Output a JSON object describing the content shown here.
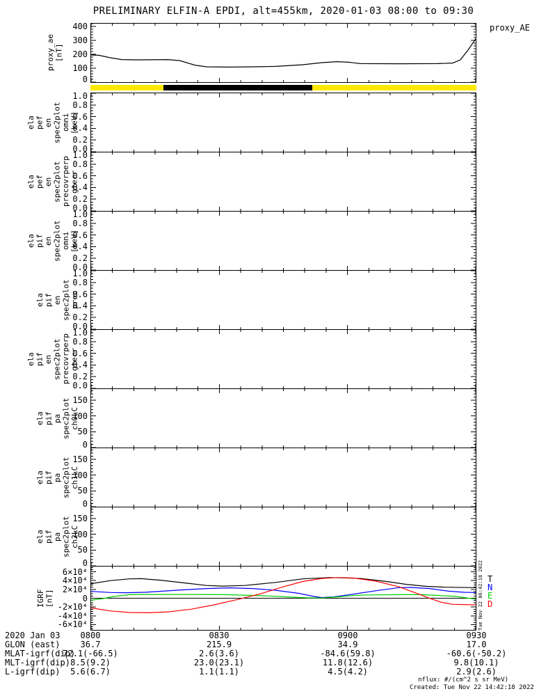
{
  "title": "PRELIMINARY ELFIN-A EPDI, alt=455km, 2020-01-03 08:00 to 09:30",
  "top_right_label": "proxy_AE",
  "side_timestamp": "Tue Nov 22 06:42:18 2022",
  "footer": {
    "nflux": "nflux: #/(cm^2 s sr MeV)",
    "created": "Created: Tue Nov 22 14:42:18 2022"
  },
  "colors": {
    "axis": "#000000",
    "bar_yellow": "#ffe800",
    "bar_black": "#000000",
    "trace_T": "#000000",
    "trace_N": "#0000ff",
    "trace_E": "#00cc00",
    "trace_D": "#ff0000"
  },
  "legend": {
    "entries": [
      {
        "label": "T",
        "color": "#000000"
      },
      {
        "label": "N",
        "color": "#0000ff"
      },
      {
        "label": "E",
        "color": "#00cc00"
      },
      {
        "label": "D",
        "color": "#ff0000"
      }
    ]
  },
  "x_axis": {
    "tick_labels": [
      "0800",
      "0830",
      "0900",
      "0930"
    ],
    "minor_per_major": 6
  },
  "status_bar": {
    "segments": [
      {
        "from": 0.0,
        "to": 0.19,
        "color": "#ffe800"
      },
      {
        "from": 0.19,
        "to": 0.575,
        "color": "#000000"
      },
      {
        "from": 0.575,
        "to": 1.0,
        "color": "#ffe800"
      }
    ]
  },
  "bottom_table": {
    "rows": [
      {
        "label": "2020 Jan 03",
        "values": [
          "0800",
          "0830",
          "0900",
          "0930"
        ]
      },
      {
        "label": "GLON (east)",
        "values": [
          "36.7",
          "215.9",
          "34.9",
          "17.0"
        ]
      },
      {
        "label": "MLAT-igrf(dip)",
        "values": [
          "72.1(-66.5)",
          "2.6(3.6)",
          "-84.6(59.8)",
          "-60.6(-50.2)"
        ]
      },
      {
        "label": "MLT-igrf(dip)",
        "values": [
          "8.5(9.2)",
          "23.0(23.1)",
          "11.8(12.6)",
          "9.8(10.1)"
        ]
      },
      {
        "label": "L-igrf(dip)",
        "values": [
          "5.6(6.7)",
          "1.1(1.1)",
          "4.5(4.2)",
          "2.9(2.6)"
        ]
      }
    ]
  },
  "chart_data": {
    "type": "line",
    "x_range": [
      "08:00",
      "09:30"
    ],
    "x_ticks": [
      "0800",
      "0830",
      "0900",
      "0930"
    ],
    "panels": [
      {
        "name": "proxy_ae",
        "top": 33,
        "h": 86,
        "label": "proxy_ae\n[nT]",
        "label_right": 92,
        "ylim": [
          0,
          420
        ],
        "yminor": 20,
        "yticks": [
          {
            "v": 0,
            "t": "0"
          },
          {
            "v": 100,
            "t": "100"
          },
          {
            "v": 200,
            "t": "200"
          },
          {
            "v": 300,
            "t": "300"
          },
          {
            "v": 400,
            "t": "400"
          }
        ],
        "series": [
          {
            "name": "proxy_ae",
            "color": "#000000",
            "points": [
              [
                0,
                195
              ],
              [
                0.02,
                193
              ],
              [
                0.05,
                175
              ],
              [
                0.08,
                162
              ],
              [
                0.12,
                160
              ],
              [
                0.2,
                162
              ],
              [
                0.23,
                155
              ],
              [
                0.27,
                122
              ],
              [
                0.3,
                110
              ],
              [
                0.36,
                108
              ],
              [
                0.42,
                110
              ],
              [
                0.48,
                113
              ],
              [
                0.55,
                125
              ],
              [
                0.6,
                140
              ],
              [
                0.64,
                147
              ],
              [
                0.67,
                143
              ],
              [
                0.7,
                133
              ],
              [
                0.8,
                132
              ],
              [
                0.9,
                133
              ],
              [
                0.94,
                137
              ],
              [
                0.96,
                160
              ],
              [
                0.98,
                230
              ],
              [
                1,
                310
              ]
            ]
          }
        ]
      },
      {
        "name": "ela_pef_en_spec2plot_omni",
        "top": 133,
        "h": 86,
        "label": "ela\npef\nen\nspec2plot\nomni\n[keV]",
        "ylim": [
          0,
          1
        ],
        "yminor": 0.05,
        "yticks": [
          {
            "v": 0,
            "t": "0.0"
          },
          {
            "v": 0.2,
            "t": "0.2"
          },
          {
            "v": 0.4,
            "t": "0.4"
          },
          {
            "v": 0.6,
            "t": "0.6"
          },
          {
            "v": 0.8,
            "t": "0.8"
          },
          {
            "v": 1,
            "t": "1.0"
          }
        ],
        "series": []
      },
      {
        "name": "ela_pef_en_spec2plot_precovrperp_gterr",
        "top": 218,
        "h": 86,
        "label": "ela\npef\nen\nspec2plot\nprecovrperp\ngterr",
        "ylim": [
          0,
          1
        ],
        "yminor": 0.05,
        "yticks": [
          {
            "v": 0,
            "t": "0.0"
          },
          {
            "v": 0.2,
            "t": "0.2"
          },
          {
            "v": 0.4,
            "t": "0.4"
          },
          {
            "v": 0.6,
            "t": "0.6"
          },
          {
            "v": 0.8,
            "t": "0.8"
          },
          {
            "v": 1,
            "t": "1.0"
          }
        ],
        "series": []
      },
      {
        "name": "ela_pif_en_spec2plot_omni",
        "top": 303,
        "h": 86,
        "label": "ela\npif\nen\nspec2plot\nomni\n[keV]",
        "ylim": [
          0,
          1
        ],
        "yminor": 0.05,
        "yticks": [
          {
            "v": 0,
            "t": "0.0"
          },
          {
            "v": 0.2,
            "t": "0.2"
          },
          {
            "v": 0.4,
            "t": "0.4"
          },
          {
            "v": 0.6,
            "t": "0.6"
          },
          {
            "v": 0.8,
            "t": "0.8"
          },
          {
            "v": 1,
            "t": "1.0"
          }
        ],
        "series": []
      },
      {
        "name": "ela_pif_en_spec2plot_prec",
        "top": 388,
        "h": 86,
        "label": "ela\npif\nen\nspec2plot\nprec",
        "ylim": [
          0,
          1
        ],
        "yminor": 0.05,
        "yticks": [
          {
            "v": 0,
            "t": "0.0"
          },
          {
            "v": 0.2,
            "t": "0.2"
          },
          {
            "v": 0.4,
            "t": "0.4"
          },
          {
            "v": 0.6,
            "t": "0.6"
          },
          {
            "v": 0.8,
            "t": "0.8"
          },
          {
            "v": 1,
            "t": "1.0"
          }
        ],
        "series": []
      },
      {
        "name": "ela_pif_en_spec2plot_precovrperp_gterr",
        "top": 473,
        "h": 86,
        "label": "ela\npif\nen\nspec2plot\nprecovrperp\ngterr",
        "ylim": [
          0,
          1
        ],
        "yminor": 0.05,
        "yticks": [
          {
            "v": 0,
            "t": "0.0"
          },
          {
            "v": 0.2,
            "t": "0.2"
          },
          {
            "v": 0.4,
            "t": "0.4"
          },
          {
            "v": 0.6,
            "t": "0.6"
          },
          {
            "v": 0.8,
            "t": "0.8"
          },
          {
            "v": 1,
            "t": "1.0"
          }
        ],
        "series": []
      },
      {
        "name": "ela_pif_pa_spec2plot_ch0LC",
        "top": 558,
        "h": 86,
        "label": "ela\npif\npa\nspec2plot\nch0LC",
        "ylim": [
          0,
          185
        ],
        "yminor": 10,
        "yticks": [
          {
            "v": 0,
            "t": "0"
          },
          {
            "v": 50,
            "t": "50"
          },
          {
            "v": 100,
            "t": "100"
          },
          {
            "v": 150,
            "t": "150"
          }
        ],
        "series": []
      },
      {
        "name": "ela_pif_pa_spec2plot_ch1LC",
        "top": 643,
        "h": 86,
        "label": "ela\npif\npa\nspec2plot\nch1LC",
        "ylim": [
          0,
          185
        ],
        "yminor": 10,
        "yticks": [
          {
            "v": 0,
            "t": "0"
          },
          {
            "v": 50,
            "t": "50"
          },
          {
            "v": 100,
            "t": "100"
          },
          {
            "v": 150,
            "t": "150"
          }
        ],
        "series": []
      },
      {
        "name": "ela_pif_pa_spec2plot_ch2LC",
        "top": 728,
        "h": 86,
        "label": "ela\npif\npa\nspec2plot\nch2LC",
        "ylim": [
          0,
          185
        ],
        "yminor": 10,
        "yticks": [
          {
            "v": 0,
            "t": "0"
          },
          {
            "v": 50,
            "t": "50"
          },
          {
            "v": 100,
            "t": "100"
          },
          {
            "v": 150,
            "t": "150"
          }
        ],
        "series": []
      },
      {
        "name": "igrf",
        "top": 813,
        "h": 93,
        "label": "IGRF\n[nT]",
        "label_right": 78,
        "ylim": [
          -72000,
          72000
        ],
        "yminor": 5000,
        "zero_line": true,
        "yticks": [
          {
            "v": 60000,
            "t": "6×10⁴"
          },
          {
            "v": 40000,
            "t": "4×10⁴"
          },
          {
            "v": 20000,
            "t": "2×10⁴"
          },
          {
            "v": 0,
            "t": "0"
          },
          {
            "v": -20000,
            "t": "-2×10⁴"
          },
          {
            "v": -40000,
            "t": "-4×10⁴"
          },
          {
            "v": -60000,
            "t": "-6×10⁴"
          }
        ],
        "series": [
          {
            "name": "T",
            "color": "#000000",
            "points": [
              [
                0,
                33000
              ],
              [
                0.05,
                40000
              ],
              [
                0.1,
                44000
              ],
              [
                0.13,
                44500
              ],
              [
                0.18,
                41000
              ],
              [
                0.25,
                34000
              ],
              [
                0.3,
                29000
              ],
              [
                0.34,
                27500
              ],
              [
                0.4,
                29000
              ],
              [
                0.48,
                36000
              ],
              [
                0.55,
                44000
              ],
              [
                0.62,
                47000
              ],
              [
                0.7,
                45000
              ],
              [
                0.76,
                39000
              ],
              [
                0.82,
                31500
              ],
              [
                0.87,
                27000
              ],
              [
                0.92,
                25000
              ],
              [
                1,
                24000
              ]
            ]
          },
          {
            "name": "N",
            "color": "#0000ff",
            "points": [
              [
                0,
                15500
              ],
              [
                0.05,
                13000
              ],
              [
                0.09,
                12500
              ],
              [
                0.14,
                13500
              ],
              [
                0.22,
                18000
              ],
              [
                0.3,
                22000
              ],
              [
                0.36,
                23500
              ],
              [
                0.42,
                22000
              ],
              [
                0.48,
                18000
              ],
              [
                0.54,
                11000
              ],
              [
                0.58,
                4000
              ],
              [
                0.6,
                1500
              ],
              [
                0.63,
                3000
              ],
              [
                0.68,
                9000
              ],
              [
                0.74,
                17000
              ],
              [
                0.8,
                24000
              ],
              [
                0.83,
                24500
              ],
              [
                0.88,
                22000
              ],
              [
                0.93,
                16000
              ],
              [
                0.97,
                13500
              ],
              [
                1,
                13000
              ]
            ]
          },
          {
            "name": "E",
            "color": "#00cc00",
            "points": [
              [
                0,
                -4500
              ],
              [
                0.03,
                -1000
              ],
              [
                0.06,
                4000
              ],
              [
                0.1,
                8000
              ],
              [
                0.14,
                8500
              ],
              [
                0.25,
                8500
              ],
              [
                0.35,
                8000
              ],
              [
                0.45,
                5500
              ],
              [
                0.52,
                2500
              ],
              [
                0.56,
                1000
              ],
              [
                0.6,
                500
              ],
              [
                0.64,
                3000
              ],
              [
                0.68,
                6000
              ],
              [
                0.72,
                7500
              ],
              [
                0.8,
                8000
              ],
              [
                0.86,
                8000
              ],
              [
                0.9,
                6500
              ],
              [
                0.95,
                4000
              ],
              [
                1,
                -2000
              ]
            ]
          },
          {
            "name": "D",
            "color": "#ff0000",
            "points": [
              [
                0,
                -22000
              ],
              [
                0.05,
                -29000
              ],
              [
                0.1,
                -32500
              ],
              [
                0.15,
                -33000
              ],
              [
                0.2,
                -31000
              ],
              [
                0.26,
                -25000
              ],
              [
                0.32,
                -15000
              ],
              [
                0.38,
                -3000
              ],
              [
                0.44,
                10000
              ],
              [
                0.5,
                26000
              ],
              [
                0.55,
                38000
              ],
              [
                0.6,
                45000
              ],
              [
                0.64,
                47000
              ],
              [
                0.68,
                46000
              ],
              [
                0.74,
                39000
              ],
              [
                0.8,
                26000
              ],
              [
                0.85,
                10000
              ],
              [
                0.88,
                0
              ],
              [
                0.91,
                -9000
              ],
              [
                0.94,
                -14000
              ],
              [
                1,
                -15000
              ]
            ]
          }
        ]
      }
    ]
  }
}
